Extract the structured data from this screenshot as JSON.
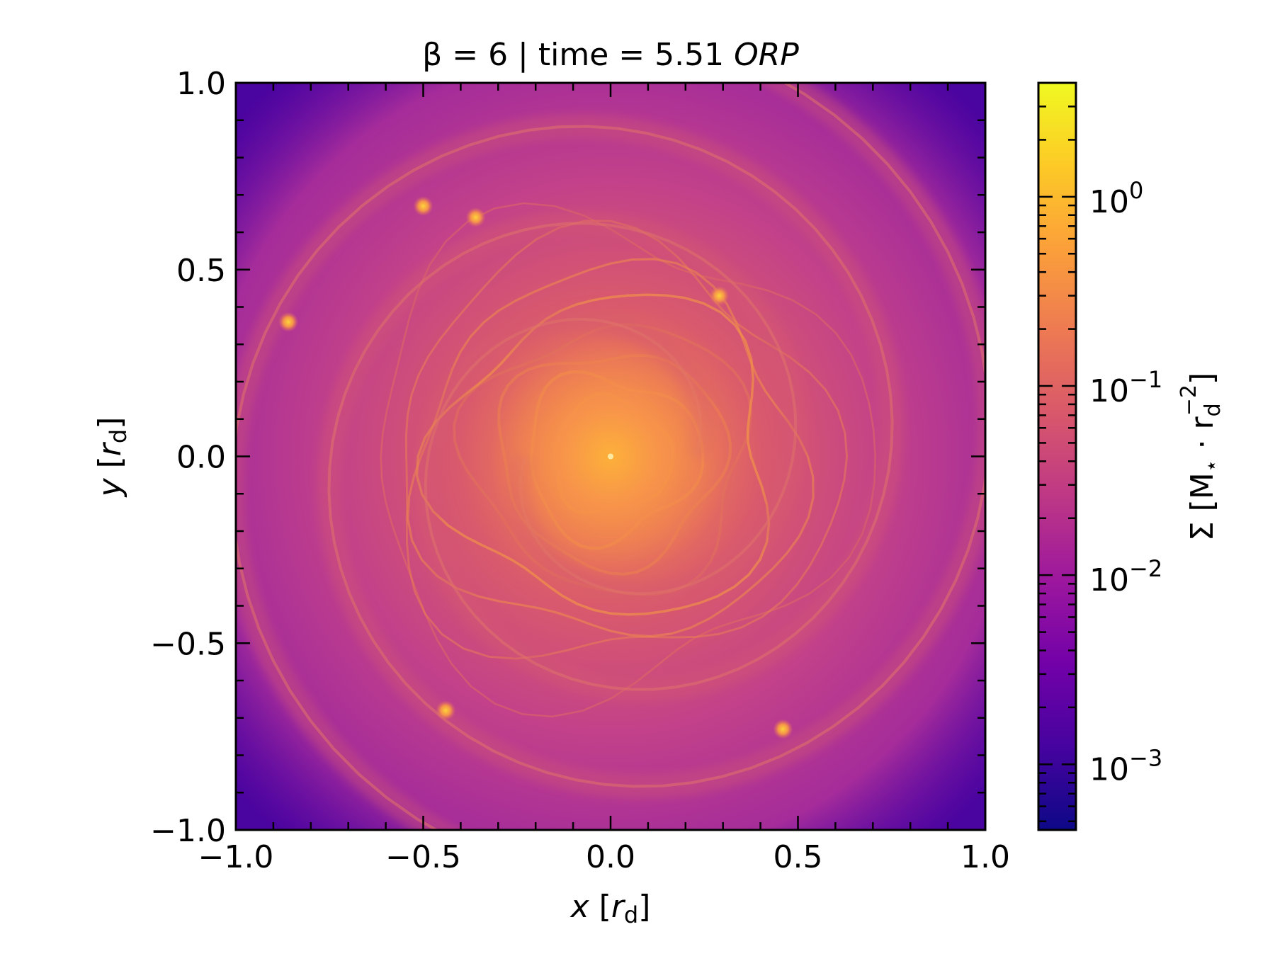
{
  "chart_data": {
    "type": "heatmap",
    "title": {
      "prefix": "β = 6 | time = 5.51 ",
      "emph": "ORP"
    },
    "xlabel": {
      "var": "x",
      "unit_open": "[",
      "unit_var": "r",
      "unit_sub": "d",
      "unit_close": "]"
    },
    "ylabel": {
      "var": "y",
      "unit_open": "[",
      "unit_var": "r",
      "unit_sub": "d",
      "unit_close": "]"
    },
    "xlim": [
      -1.0,
      1.0
    ],
    "ylim": [
      -1.0,
      1.0
    ],
    "xticks": [
      -1.0,
      -0.5,
      0.0,
      0.5,
      1.0
    ],
    "yticks": [
      -1.0,
      -0.5,
      0.0,
      0.5,
      1.0
    ],
    "xtick_labels": [
      "−1.0",
      "−0.5",
      "0.0",
      "0.5",
      "1.0"
    ],
    "ytick_labels": [
      "−1.0",
      "−0.5",
      "0.0",
      "0.5",
      "1.0"
    ],
    "colorbar": {
      "scale": "log",
      "range": [
        0.00045,
        4.0
      ],
      "colormap": "plasma",
      "ticks": [
        0.001,
        0.01,
        0.1,
        1
      ],
      "tick_labels": [
        {
          "base": "10",
          "exp": "−3"
        },
        {
          "base": "10",
          "exp": "−2"
        },
        {
          "base": "10",
          "exp": "−1"
        },
        {
          "base": "10",
          "exp": "0"
        }
      ],
      "label": {
        "text": "Σ [M",
        "star": "⋆",
        "mid": " · r",
        "sub": "d",
        "sup": "−2",
        "close": "]"
      }
    },
    "features": {
      "center": [
        0.0,
        0.0
      ],
      "clumps": [
        [
          -0.5,
          0.67
        ],
        [
          -0.36,
          0.64
        ],
        [
          -0.86,
          0.36
        ],
        [
          -0.44,
          -0.68
        ],
        [
          0.46,
          -0.73
        ],
        [
          0.29,
          0.43
        ]
      ]
    }
  },
  "colors": {
    "cmap_stops": [
      "#0d0887",
      "#46039f",
      "#7201a8",
      "#9c179e",
      "#bd3786",
      "#d8576b",
      "#ed7953",
      "#fb9f3a",
      "#fdca26",
      "#f0f921"
    ]
  }
}
